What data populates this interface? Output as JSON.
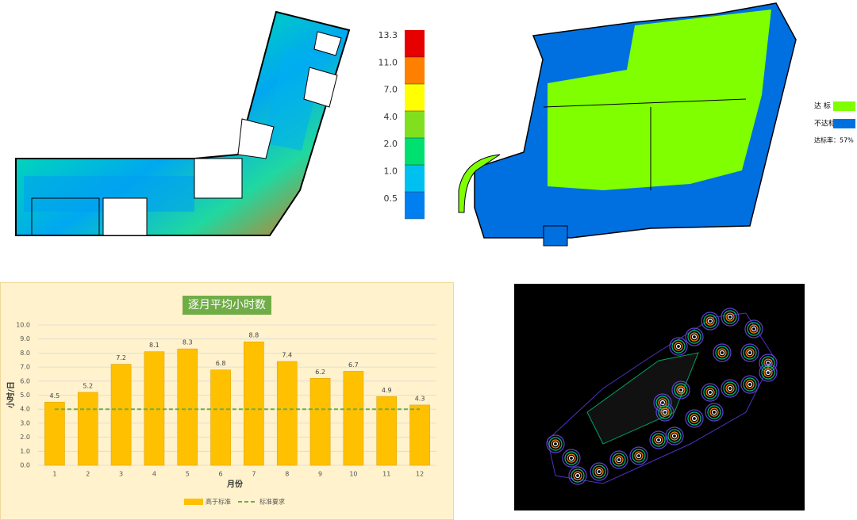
{
  "heatmap_legend": {
    "labels": [
      "13.3",
      "11.0",
      "7.0",
      "4.0",
      "2.0",
      "1.0",
      "0.5"
    ],
    "colors": [
      "#e60000",
      "#ff8000",
      "#ffff00",
      "#80e020",
      "#00e070",
      "#00c0f0",
      "#0080f0"
    ]
  },
  "compliance_legend": {
    "items": [
      {
        "label": "达 标",
        "color": "#80ff00"
      },
      {
        "label": "不达标",
        "color": "#0070e0"
      }
    ],
    "rate": "达标率：57%"
  },
  "chart_data": {
    "type": "bar",
    "title": "逐月平均小时数",
    "x_label": "月份",
    "y_label": "小时/日",
    "categories": [
      "1",
      "2",
      "3",
      "4",
      "5",
      "6",
      "7",
      "8",
      "9",
      "10",
      "11",
      "12"
    ],
    "series": [
      {
        "name": "高于标准",
        "type": "bar",
        "color": "#ffc000",
        "values": [
          4.5,
          5.2,
          7.2,
          8.1,
          8.3,
          6.8,
          8.8,
          7.4,
          6.2,
          6.7,
          4.9,
          4.3
        ]
      },
      {
        "name": "标准要求",
        "type": "line",
        "color": "#70ad47",
        "values": [
          4,
          4,
          4,
          4,
          4,
          4,
          4,
          4,
          4,
          4,
          4,
          4
        ]
      }
    ],
    "ylim": [
      0,
      10
    ],
    "yticks": [
      {
        "value": 0,
        "label": "0.0"
      },
      {
        "value": 1,
        "label": "1.0"
      },
      {
        "value": 2,
        "label": "2.0"
      },
      {
        "value": 3,
        "label": "3.0"
      },
      {
        "value": 4,
        "label": "4.0"
      },
      {
        "value": 5,
        "label": "5.0"
      },
      {
        "value": 6,
        "label": "6.0"
      },
      {
        "value": 7,
        "label": "7.0"
      },
      {
        "value": 8,
        "label": "8.0"
      },
      {
        "value": 9,
        "label": "9.0"
      },
      {
        "value": 10,
        "label": "10.0"
      }
    ],
    "grid": true
  }
}
